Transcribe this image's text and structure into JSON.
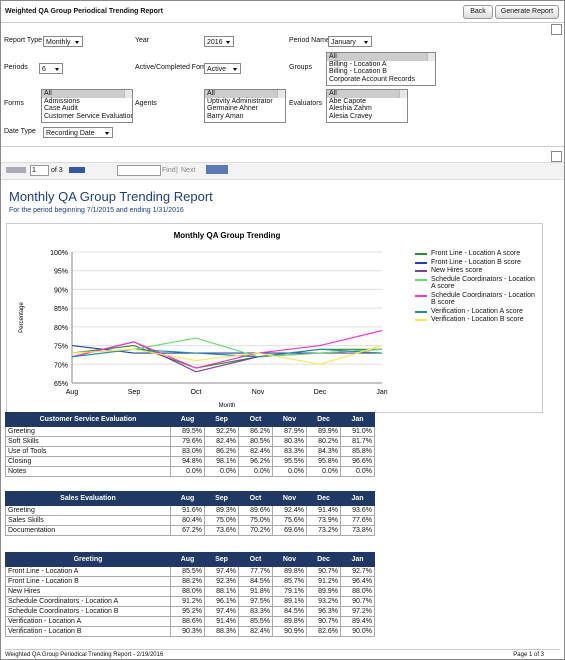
{
  "header": {
    "title": "Weighted QA Group Periodical Trending Report",
    "buttons": [
      "Back",
      "Generate Report"
    ]
  },
  "form": {
    "report_type": {
      "label": "Report Type",
      "value": "Monthly"
    },
    "year": {
      "label": "Year",
      "value": "2016"
    },
    "period_name": {
      "label": "Period Name",
      "value": "January"
    },
    "periods": {
      "label": "Periods",
      "value": "6"
    },
    "forms_status": {
      "label": "Active/Completed Forms",
      "value": "Active"
    },
    "date_type": {
      "label": "Date Type",
      "value": "Recording Date"
    },
    "groups": {
      "label": "Groups",
      "options": [
        "All",
        "Billing - Location A",
        "Billing - Location B",
        "Corporate Account Records"
      ]
    },
    "forms": {
      "label": "Forms",
      "options": [
        "All",
        "Admissions",
        "Case Audit",
        "Customer Service Evaluation"
      ]
    },
    "agents": {
      "label": "Agents",
      "options": [
        "All",
        "Uptivity Administrator",
        "Germaine Ahner",
        "Barry Aman"
      ]
    },
    "evaluators": {
      "label": "Evaluators",
      "options": [
        "All",
        "Abe Capote",
        "Aleshia Zahm",
        "Alesia Cravey"
      ]
    }
  },
  "toolbar": {
    "page": "1",
    "of": "of 3",
    "find": "Find",
    "separator": "|",
    "next": "Next"
  },
  "report": {
    "title": "Monthly QA Group Trending Report",
    "subtitle": "For the period beginning 7/1/2015 and ending 1/31/2016"
  },
  "chart_data": {
    "type": "line",
    "title": "Monthly QA Group Trending",
    "x_label": "Month",
    "y_label": "Percentage",
    "categories": [
      "Aug",
      "Sep",
      "Oct",
      "Nov",
      "Dec",
      "Jan"
    ],
    "ylim": [
      65,
      100
    ],
    "yticks": [
      {
        "value": 65,
        "label": "65%"
      },
      {
        "value": 70,
        "label": "70%"
      },
      {
        "value": 75,
        "label": "75%"
      },
      {
        "value": 80,
        "label": "80%"
      },
      {
        "value": 85,
        "label": "85%"
      },
      {
        "value": 90,
        "label": "90%"
      },
      {
        "value": 95,
        "label": "95%"
      },
      {
        "value": 100,
        "label": "100%"
      }
    ],
    "grid": true,
    "legend": "right",
    "series": [
      {
        "name": "Front Line - Location A score",
        "color": "#2e8b3a",
        "values": [
          73,
          75,
          69,
          72,
          74,
          74
        ]
      },
      {
        "name": "Front Line - Location B score",
        "color": "#1f3fbf",
        "values": [
          75,
          73,
          73,
          73,
          73,
          74
        ]
      },
      {
        "name": "New Hires score",
        "color": "#7b3fa0",
        "values": [
          72,
          76,
          68,
          72,
          73,
          73
        ]
      },
      {
        "name": "Schedule Coordinators - Location A score",
        "color": "#66dd66",
        "values": [
          73,
          74,
          77,
          72,
          73,
          74
        ]
      },
      {
        "name": "Schedule Coordinators - Location B score",
        "color": "#ff33cc",
        "values": [
          72,
          76,
          69,
          73,
          75,
          79
        ]
      },
      {
        "name": "Verification - Location A score",
        "color": "#1f8f9f",
        "values": [
          72,
          74,
          73,
          72,
          74,
          73
        ]
      },
      {
        "name": "Verification - Location B score",
        "color": "#ffe844",
        "values": [
          73,
          74,
          71,
          73,
          70,
          75
        ]
      }
    ]
  },
  "tables": [
    {
      "columns": [
        "Customer Service Evaluation",
        "Aug",
        "Sep",
        "Oct",
        "Nov",
        "Dec",
        "Jan"
      ],
      "rows": [
        [
          "Greeting",
          "89.5%",
          "92.2%",
          "86.2%",
          "87.9%",
          "89.9%",
          "91.0%"
        ],
        [
          "Soft Skills",
          "79.6%",
          "82.4%",
          "80.5%",
          "80.3%",
          "80.2%",
          "81.7%"
        ],
        [
          "Use of Tools",
          "83.0%",
          "86.2%",
          "82.4%",
          "83.3%",
          "84.3%",
          "85.8%"
        ],
        [
          "Closing",
          "94.8%",
          "98.1%",
          "96.2%",
          "95.5%",
          "95.8%",
          "96.6%"
        ],
        [
          "Notes",
          "0.0%",
          "0.0%",
          "0.0%",
          "0.0%",
          "0.0%",
          "0.0%"
        ]
      ]
    },
    {
      "columns": [
        "Sales Evaluation",
        "Aug",
        "Sep",
        "Oct",
        "Nov",
        "Dec",
        "Jan"
      ],
      "rows": [
        [
          "Greeting",
          "91.6%",
          "89.3%",
          "89.6%",
          "92.4%",
          "91.4%",
          "93.6%"
        ],
        [
          "Sales Skills",
          "80.4%",
          "75.0%",
          "75.0%",
          "75.6%",
          "73.9%",
          "77.6%"
        ],
        [
          "Documentation",
          "67.2%",
          "73.6%",
          "70.2%",
          "69.6%",
          "73.2%",
          "73.8%"
        ]
      ]
    },
    {
      "columns": [
        "Greeting",
        "Aug",
        "Sep",
        "Oct",
        "Nov",
        "Dec",
        "Jan"
      ],
      "rows": [
        [
          "Front Line - Location A",
          "85.5%",
          "97.4%",
          "77.7%",
          "89.8%",
          "90.7%",
          "92.7%"
        ],
        [
          "Front Line - Location B",
          "88.2%",
          "92.3%",
          "84.5%",
          "85.7%",
          "91.2%",
          "96.4%"
        ],
        [
          "New Hires",
          "88.0%",
          "88.1%",
          "91.8%",
          "79.1%",
          "89.9%",
          "88.0%"
        ],
        [
          "Schedule Coordinators - Location A",
          "91.2%",
          "96.1%",
          "97.5%",
          "89.1%",
          "93.2%",
          "90.7%"
        ],
        [
          "Schedule Coordinators - Location B",
          "95.2%",
          "97.4%",
          "83.3%",
          "84.5%",
          "96.3%",
          "97.2%"
        ],
        [
          "Verification - Location A",
          "88.6%",
          "91.4%",
          "85.5%",
          "89.8%",
          "90.7%",
          "89.4%"
        ],
        [
          "Verification - Location B",
          "90.3%",
          "88.3%",
          "82.4%",
          "90.9%",
          "82.6%",
          "90.0%"
        ]
      ]
    }
  ],
  "footer": {
    "left": "Weighted QA Group Periodical Trending Report - 2/19/2016",
    "right": "Page 1 of 3"
  }
}
